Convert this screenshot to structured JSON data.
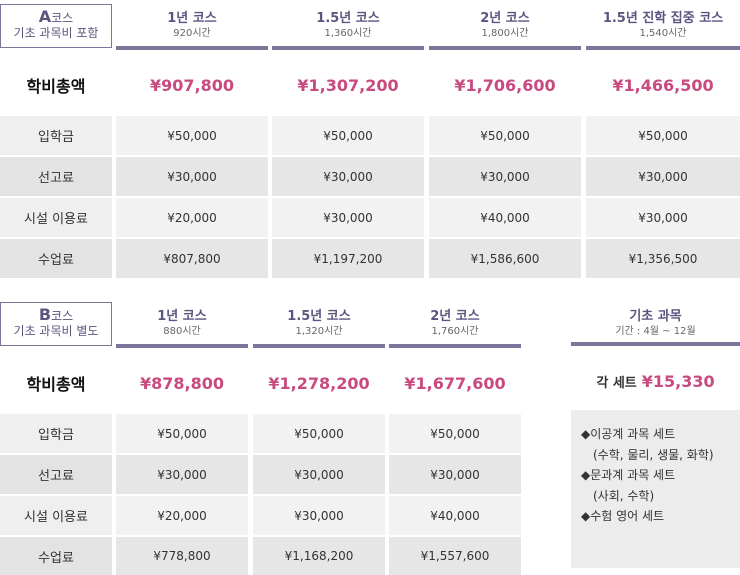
{
  "section_a": {
    "label_line1_letter": "A",
    "label_line1_rest": "코스",
    "label_line2": "기초 과목비 포함",
    "courses": [
      {
        "name": "1년 코스",
        "hours": "920시간",
        "total": "¥907,800",
        "admission": "¥50,000",
        "screening": "¥30,000",
        "facility": "¥20,000",
        "tuition": "¥807,800"
      },
      {
        "name": "1.5년 코스",
        "hours": "1,360시간",
        "total": "¥1,307,200",
        "admission": "¥50,000",
        "screening": "¥30,000",
        "facility": "¥30,000",
        "tuition": "¥1,197,200"
      },
      {
        "name": "2년 코스",
        "hours": "1,800시간",
        "total": "¥1,706,600",
        "admission": "¥50,000",
        "screening": "¥30,000",
        "facility": "¥40,000",
        "tuition": "¥1,586,600"
      },
      {
        "name": "1.5년 진학 집중 코스",
        "hours": "1,540시간",
        "total": "¥1,466,500",
        "admission": "¥50,000",
        "screening": "¥30,000",
        "facility": "¥30,000",
        "tuition": "¥1,356,500"
      }
    ]
  },
  "section_b": {
    "label_line1_letter": "B",
    "label_line1_rest": "코스",
    "label_line2": "기초 과목비 별도",
    "courses": [
      {
        "name": "1년 코스",
        "hours": "880시간",
        "total": "¥878,800",
        "admission": "¥50,000",
        "screening": "¥30,000",
        "facility": "¥20,000",
        "tuition": "¥778,800"
      },
      {
        "name": "1.5년 코스",
        "hours": "1,320시간",
        "total": "¥1,278,200",
        "admission": "¥50,000",
        "screening": "¥30,000",
        "facility": "¥30,000",
        "tuition": "¥1,168,200"
      },
      {
        "name": "2년 코스",
        "hours": "1,760시간",
        "total": "¥1,677,600",
        "admission": "¥50,000",
        "screening": "¥30,000",
        "facility": "¥40,000",
        "tuition": "¥1,557,600"
      }
    ],
    "basic": {
      "title": "기초 과목",
      "period": "기간 : 4월 ~ 12월",
      "price_prefix": "각 세트",
      "price": "¥15,330",
      "items": [
        "◆이공계 과목 세트",
        "(수학, 물리, 생물, 화학)",
        "◆문과계 과목 세트",
        "(사회, 수학)",
        "◆수험 영어 세트"
      ]
    }
  },
  "row_labels": {
    "total": "학비총액",
    "admission": "입학금",
    "screening": "선고료",
    "facility": "시설 이용료",
    "tuition": "수업료"
  }
}
